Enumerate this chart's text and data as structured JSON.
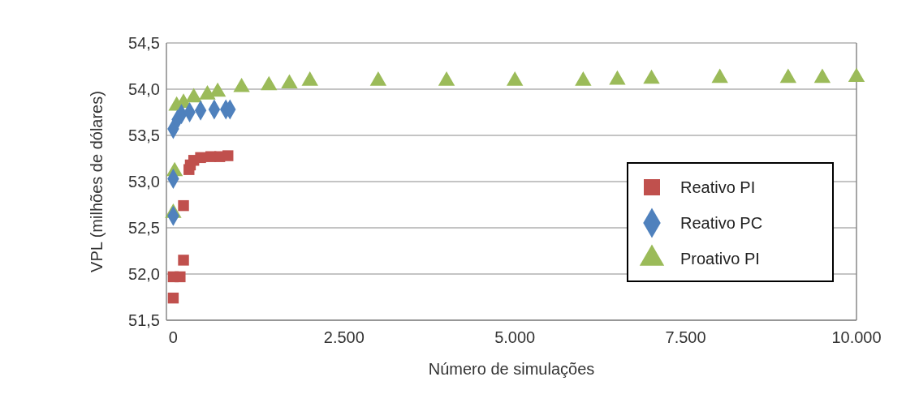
{
  "chart_data": {
    "type": "scatter",
    "xlabel": "Número de simulações",
    "ylabel": "VPL (milhões de dólares)",
    "xlim": [
      -100,
      10000
    ],
    "xticks": [
      {
        "value": 0,
        "label": "0"
      },
      {
        "value": 2500,
        "label": "2.500"
      },
      {
        "value": 5000,
        "label": "5.000"
      },
      {
        "value": 7500,
        "label": "7.500"
      },
      {
        "value": 10000,
        "label": "10.000"
      }
    ],
    "ylim": [
      51.5,
      54.5
    ],
    "yticks": [
      {
        "value": 51.5,
        "label": "51,5"
      },
      {
        "value": 52,
        "label": "52,0"
      },
      {
        "value": 52.5,
        "label": "52,5"
      },
      {
        "value": 53,
        "label": "53,0"
      },
      {
        "value": 53.5,
        "label": "53,5"
      },
      {
        "value": 54,
        "label": "54,0"
      },
      {
        "value": 54.5,
        "label": "54,5"
      }
    ],
    "grid": "y",
    "legend": "right",
    "series": [
      {
        "name": "Reativo PI",
        "color": "#c0504d",
        "marker": "square",
        "x": [
          0,
          0,
          100,
          150,
          150,
          230,
          250,
          300,
          400,
          550,
          680,
          800
        ],
        "values": [
          51.74,
          51.97,
          51.97,
          52.15,
          52.74,
          53.13,
          53.18,
          53.23,
          53.26,
          53.27,
          53.27,
          53.28
        ]
      },
      {
        "name": "Reativo PC",
        "color": "#4f81bd",
        "marker": "diamond",
        "x": [
          0,
          0,
          0,
          60,
          120,
          240,
          400,
          600,
          770,
          830
        ],
        "values": [
          52.63,
          53.03,
          53.57,
          53.67,
          53.73,
          53.75,
          53.77,
          53.78,
          53.78,
          53.78
        ]
      },
      {
        "name": "Proativo PI",
        "color": "#9bbb59",
        "marker": "triangle",
        "x": [
          0,
          20,
          50,
          150,
          300,
          500,
          650,
          1000,
          1400,
          1700,
          2000,
          3000,
          4000,
          5000,
          6000,
          6500,
          7000,
          8000,
          9000,
          9500,
          10000
        ],
        "values": [
          52.66,
          53.11,
          53.82,
          53.85,
          53.91,
          53.94,
          53.97,
          54.02,
          54.04,
          54.06,
          54.09,
          54.09,
          54.09,
          54.09,
          54.09,
          54.1,
          54.11,
          54.12,
          54.12,
          54.12,
          54.13
        ]
      }
    ]
  }
}
